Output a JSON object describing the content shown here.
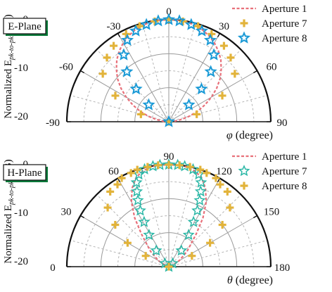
{
  "chart_data": [
    {
      "type": "polar-half",
      "panel_label": "E-Plane",
      "angle_axis": {
        "label_symbol": "φ",
        "label_unit": " (degree)",
        "range": [
          -90,
          90
        ],
        "tick_labels": [
          "-90",
          "-60",
          "-30",
          "0",
          "30",
          "60",
          "90"
        ],
        "tick_values": [
          -90,
          -60,
          -30,
          0,
          30,
          60,
          90
        ]
      },
      "radial_axis": {
        "label_prefix": "Normalized E",
        "label_subscript": "pk-to-pk",
        "label_suffix": " (dB)",
        "range": [
          -30,
          0
        ],
        "tick_labels": [
          "0",
          "-10",
          "-20"
        ],
        "tick_values": [
          0,
          -10,
          -20
        ]
      },
      "grid": true,
      "legend_position": "top-right",
      "series": [
        {
          "name": "Aperture 1",
          "marker": "dashed-line",
          "color": "#e8707a",
          "points": [
            [
              -90,
              -30
            ],
            [
              -85,
              -28.3
            ],
            [
              -80,
              -26.3
            ],
            [
              -75,
              -23.8
            ],
            [
              -70,
              -21
            ],
            [
              -65,
              -18.3
            ],
            [
              -60,
              -15.5
            ],
            [
              -55,
              -12.8
            ],
            [
              -50,
              -10.3
            ],
            [
              -45,
              -8.2
            ],
            [
              -40,
              -6.2
            ],
            [
              -35,
              -4.6
            ],
            [
              -30,
              -3.2
            ],
            [
              -25,
              -2.1
            ],
            [
              -20,
              -1.2
            ],
            [
              -15,
              -0.6
            ],
            [
              -10,
              -0.2
            ],
            [
              -5,
              0
            ],
            [
              0,
              0
            ],
            [
              5,
              0
            ],
            [
              10,
              -0.2
            ],
            [
              15,
              -0.6
            ],
            [
              20,
              -1.2
            ],
            [
              25,
              -2.1
            ],
            [
              30,
              -3.2
            ],
            [
              35,
              -4.6
            ],
            [
              40,
              -6.2
            ],
            [
              45,
              -8.2
            ],
            [
              50,
              -10.3
            ],
            [
              55,
              -12.8
            ],
            [
              60,
              -15.5
            ],
            [
              65,
              -18.3
            ],
            [
              70,
              -21
            ],
            [
              75,
              -23.8
            ],
            [
              80,
              -26.3
            ],
            [
              85,
              -28.3
            ],
            [
              90,
              -30
            ]
          ]
        },
        {
          "name": "Aperture 7",
          "marker": "plus",
          "color": "#e2b33a",
          "points": [
            [
              -90,
              -30
            ],
            [
              -75,
              -21.5
            ],
            [
              -64,
              -12.5
            ],
            [
              -54,
              -6
            ],
            [
              -44,
              -3.8
            ],
            [
              -36,
              -2.4
            ],
            [
              -26,
              -1.3
            ],
            [
              -17,
              -0.6
            ],
            [
              -8,
              -0.2
            ],
            [
              0,
              0
            ],
            [
              8,
              -0.2
            ],
            [
              17,
              -0.6
            ],
            [
              26,
              -1.3
            ],
            [
              36,
              -2.4
            ],
            [
              44,
              -3.8
            ],
            [
              54,
              -6
            ],
            [
              64,
              -12.5
            ],
            [
              75,
              -21.5
            ],
            [
              90,
              -30
            ]
          ]
        },
        {
          "name": "Aperture 8",
          "marker": "star",
          "color": "#1a9ad6",
          "points": [
            [
              -90,
              -30
            ],
            [
              -50,
              -22.3
            ],
            [
              -45,
              -16.4
            ],
            [
              -40,
              -10.8
            ],
            [
              -34,
              -6.3
            ],
            [
              -27,
              -3.1
            ],
            [
              -20,
              -1.6
            ],
            [
              -13,
              -0.7
            ],
            [
              -6,
              -0.2
            ],
            [
              0,
              0
            ],
            [
              6,
              -0.2
            ],
            [
              13,
              -0.7
            ],
            [
              20,
              -1.6
            ],
            [
              27,
              -3.1
            ],
            [
              34,
              -6.3
            ],
            [
              40,
              -10.8
            ],
            [
              45,
              -16.4
            ],
            [
              50,
              -22.3
            ]
          ]
        }
      ]
    },
    {
      "type": "polar-half",
      "panel_label": "H-Plane",
      "angle_axis": {
        "label_symbol": "θ",
        "label_unit": " (degree)",
        "range": [
          0,
          180
        ],
        "tick_labels": [
          "0",
          "30",
          "60",
          "90",
          "120",
          "150",
          "180"
        ],
        "tick_values": [
          0,
          30,
          60,
          90,
          120,
          150,
          180
        ]
      },
      "radial_axis": {
        "label_prefix": "Normalized E",
        "label_subscript": "pk-to-pk",
        "label_suffix": " (dB)",
        "range": [
          -30,
          0
        ],
        "tick_labels": [
          "0",
          "-10",
          "-20"
        ],
        "tick_values": [
          0,
          -10,
          -20
        ]
      },
      "grid": true,
      "legend_position": "top-right",
      "series": [
        {
          "name": "Aperture 1",
          "marker": "dashed-line",
          "color": "#e8707a",
          "points": [
            [
              14,
              -30
            ],
            [
              20,
              -28.8
            ],
            [
              30,
              -26.5
            ],
            [
              40,
              -23
            ],
            [
              50,
              -17.5
            ],
            [
              55,
              -12.5
            ],
            [
              60,
              -8
            ],
            [
              65,
              -4.5
            ],
            [
              70,
              -2
            ],
            [
              75,
              -0.8
            ],
            [
              80,
              -0.2
            ],
            [
              85,
              0
            ],
            [
              90,
              0
            ],
            [
              95,
              0
            ],
            [
              100,
              -0.2
            ],
            [
              105,
              -0.8
            ],
            [
              110,
              -2
            ],
            [
              115,
              -4.5
            ],
            [
              120,
              -8
            ],
            [
              125,
              -12.5
            ],
            [
              130,
              -17.5
            ],
            [
              140,
              -23
            ],
            [
              150,
              -26.5
            ],
            [
              160,
              -28.8
            ],
            [
              166,
              -30
            ]
          ]
        },
        {
          "name": "Aperture 7",
          "marker": "star-outline",
          "color": "#2bb7a6",
          "points": [
            [
              8,
              -30
            ],
            [
              40,
              -28.5
            ],
            [
              52,
              -24
            ],
            [
              58,
              -19
            ],
            [
              61,
              -15
            ],
            [
              63,
              -11.5
            ],
            [
              65,
              -8.5
            ],
            [
              67,
              -6
            ],
            [
              69,
              -3.5
            ],
            [
              72,
              -1.5
            ],
            [
              76,
              -0.5
            ],
            [
              81,
              -0.1
            ],
            [
              85,
              0
            ],
            [
              90,
              0
            ],
            [
              95,
              0
            ],
            [
              99,
              -0.1
            ],
            [
              104,
              -0.5
            ],
            [
              108,
              -1.5
            ],
            [
              111,
              -3.5
            ],
            [
              113,
              -6
            ],
            [
              115,
              -8.5
            ],
            [
              117,
              -11.5
            ],
            [
              119,
              -15
            ],
            [
              122,
              -19
            ],
            [
              128,
              -24
            ],
            [
              140,
              -28.5
            ],
            [
              172,
              -30
            ]
          ]
        },
        {
          "name": "Aperture 8",
          "marker": "plus",
          "color": "#e2b33a",
          "points": [
            [
              0,
              -30
            ],
            [
              25,
              -22.5
            ],
            [
              30,
              -16
            ],
            [
              38,
              -10
            ],
            [
              44,
              -5
            ],
            [
              52,
              -2
            ],
            [
              58,
              -1.5
            ],
            [
              62,
              -0.5
            ],
            [
              68,
              -0.3
            ],
            [
              72,
              0
            ],
            [
              78,
              0
            ],
            [
              84,
              0
            ],
            [
              90,
              0
            ],
            [
              96,
              0
            ],
            [
              102,
              0
            ],
            [
              108,
              0
            ],
            [
              112,
              -0.3
            ],
            [
              118,
              -0.5
            ],
            [
              122,
              -1.5
            ],
            [
              128,
              -2
            ],
            [
              136,
              -5
            ],
            [
              142,
              -10
            ],
            [
              150,
              -16
            ],
            [
              155,
              -22.5
            ],
            [
              180,
              -30
            ]
          ]
        }
      ]
    }
  ]
}
